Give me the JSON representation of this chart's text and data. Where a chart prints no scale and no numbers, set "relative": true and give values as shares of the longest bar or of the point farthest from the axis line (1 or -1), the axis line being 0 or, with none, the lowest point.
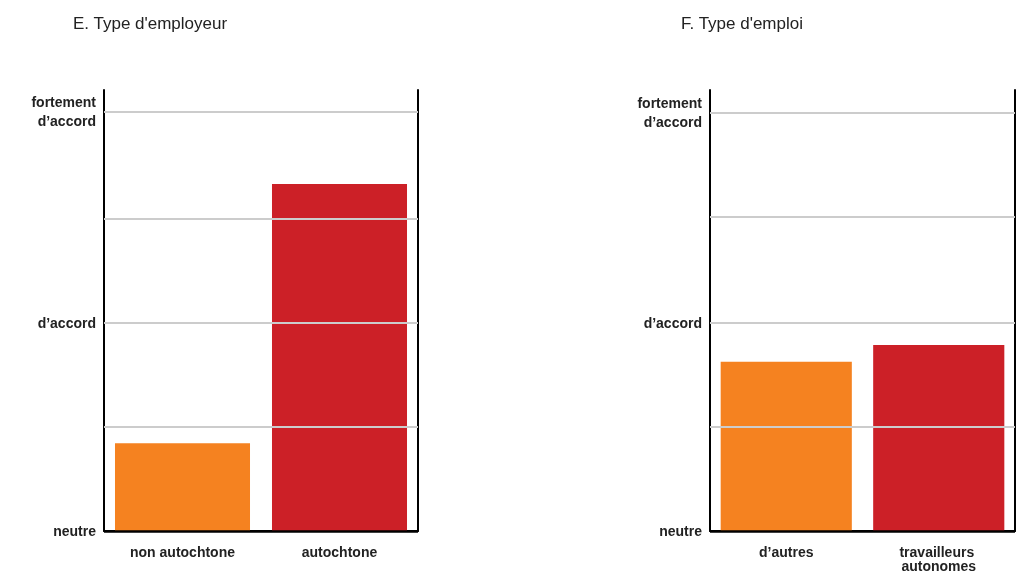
{
  "chart_data": [
    {
      "type": "bar",
      "title": "E. Type d'employeur",
      "categories": [
        "non autochtone",
        "autochtone"
      ],
      "values": [
        0.253,
        1
      ],
      "colors": [
        "#f58220",
        "#cc2027"
      ],
      "relative": true,
      "ref_lines": [
        {
          "axis": "y",
          "value": 0,
          "label": "neutre",
          "color": "#000000"
        },
        {
          "axis": "y",
          "value": 0.301,
          "label": null,
          "color": "#cccccc"
        },
        {
          "axis": "y",
          "value": 0.602,
          "label": "d’accord",
          "color": "#cccccc"
        },
        {
          "axis": "y",
          "value": 0.9,
          "label": null,
          "color": "#cccccc"
        },
        {
          "axis": "y",
          "value": 1.205,
          "label": "fortement\nd’accord",
          "color": "#cccccc"
        }
      ]
    },
    {
      "type": "bar",
      "title": "F. Type d'emploi",
      "categories": [
        "d’autres",
        "travailleurs autonomes"
      ],
      "values": [
        0.91,
        1
      ],
      "colors": [
        "#f58220",
        "#cc2027"
      ],
      "relative": true,
      "ref_lines": [
        {
          "axis": "y",
          "value": 0,
          "label": "neutre",
          "color": "#000000"
        },
        {
          "axis": "y",
          "value": 0.562,
          "label": null,
          "color": "#cccccc"
        },
        {
          "axis": "y",
          "value": 1.124,
          "label": "d’accord",
          "color": "#cccccc"
        },
        {
          "axis": "y",
          "value": 1.685,
          "label": null,
          "color": "#cccccc"
        },
        {
          "axis": "y",
          "value": 2.247,
          "label": "fortement\nd’accord",
          "color": "#cccccc"
        }
      ]
    }
  ]
}
